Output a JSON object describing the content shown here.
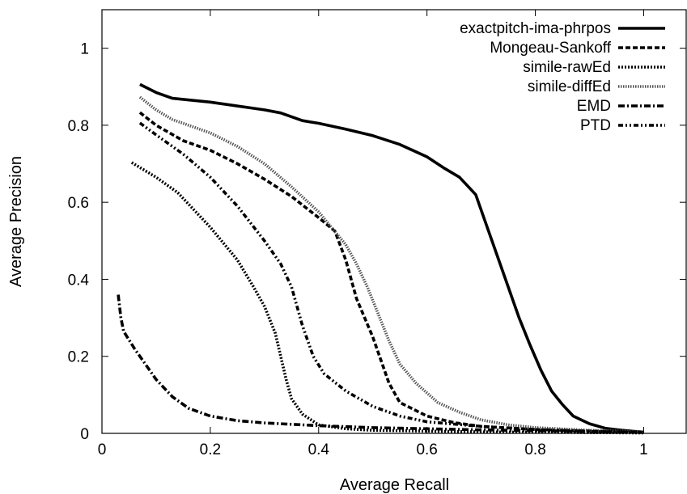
{
  "chart_data": {
    "type": "line",
    "xlabel": "Average Recall",
    "ylabel": "Average Precision",
    "xlim": [
      0,
      1.08
    ],
    "ylim": [
      0,
      1.1
    ],
    "xticks": [
      "0",
      "0.2",
      "0.4",
      "0.6",
      "0.8",
      "1"
    ],
    "yticks": [
      "0",
      "0.2",
      "0.4",
      "0.6",
      "0.8",
      "1"
    ],
    "grid": false,
    "legend_position": "top-right",
    "series": [
      {
        "name": "exactpitch-ima-phrpos",
        "style": "solid-thick",
        "x": [
          0.07,
          0.1,
          0.13,
          0.2,
          0.3,
          0.33,
          0.37,
          0.4,
          0.45,
          0.5,
          0.55,
          0.6,
          0.63,
          0.66,
          0.69,
          0.71,
          0.73,
          0.75,
          0.77,
          0.79,
          0.81,
          0.83,
          0.85,
          0.87,
          0.9,
          0.93,
          0.96,
          1.0
        ],
        "y": [
          0.906,
          0.885,
          0.87,
          0.86,
          0.84,
          0.832,
          0.812,
          0.805,
          0.79,
          0.773,
          0.75,
          0.718,
          0.69,
          0.665,
          0.62,
          0.54,
          0.46,
          0.38,
          0.3,
          0.23,
          0.165,
          0.11,
          0.075,
          0.045,
          0.025,
          0.013,
          0.008,
          0.003
        ]
      },
      {
        "name": "Mongeau-Sankoff",
        "style": "dashed-thick",
        "x": [
          0.07,
          0.1,
          0.15,
          0.2,
          0.25,
          0.3,
          0.35,
          0.4,
          0.43,
          0.45,
          0.47,
          0.5,
          0.53,
          0.55,
          0.6,
          0.65,
          0.7,
          0.8,
          0.9,
          1.0
        ],
        "y": [
          0.833,
          0.8,
          0.76,
          0.735,
          0.7,
          0.66,
          0.615,
          0.56,
          0.525,
          0.45,
          0.35,
          0.25,
          0.13,
          0.08,
          0.045,
          0.028,
          0.018,
          0.01,
          0.006,
          0.003
        ]
      },
      {
        "name": "simile-rawEd",
        "style": "dotted-thick",
        "x": [
          0.055,
          0.1,
          0.14,
          0.2,
          0.25,
          0.28,
          0.3,
          0.32,
          0.33,
          0.34,
          0.35,
          0.37,
          0.4,
          0.45,
          0.5,
          0.6,
          0.7,
          0.8,
          0.9,
          1.0
        ],
        "y": [
          0.703,
          0.665,
          0.625,
          0.535,
          0.45,
          0.38,
          0.33,
          0.26,
          0.2,
          0.14,
          0.09,
          0.05,
          0.022,
          0.012,
          0.008,
          0.006,
          0.004,
          0.003,
          0.002,
          0.001
        ]
      },
      {
        "name": "simile-diffEd",
        "style": "dotted-light",
        "x": [
          0.07,
          0.1,
          0.13,
          0.2,
          0.25,
          0.3,
          0.35,
          0.4,
          0.45,
          0.47,
          0.49,
          0.51,
          0.53,
          0.55,
          0.58,
          0.62,
          0.66,
          0.7,
          0.75,
          0.8,
          0.9,
          1.0
        ],
        "y": [
          0.873,
          0.84,
          0.815,
          0.78,
          0.745,
          0.7,
          0.64,
          0.575,
          0.49,
          0.44,
          0.38,
          0.31,
          0.24,
          0.18,
          0.13,
          0.08,
          0.055,
          0.035,
          0.022,
          0.015,
          0.008,
          0.004
        ]
      },
      {
        "name": "EMD",
        "style": "dash-dot",
        "x": [
          0.03,
          0.035,
          0.04,
          0.06,
          0.08,
          0.1,
          0.13,
          0.16,
          0.2,
          0.25,
          0.3,
          0.4,
          0.5,
          0.6,
          0.7,
          0.8,
          0.9,
          1.0
        ],
        "y": [
          0.36,
          0.3,
          0.265,
          0.22,
          0.18,
          0.14,
          0.095,
          0.065,
          0.045,
          0.033,
          0.027,
          0.02,
          0.015,
          0.012,
          0.009,
          0.007,
          0.005,
          0.003
        ]
      },
      {
        "name": "PTD",
        "style": "dash-dot-dot",
        "x": [
          0.07,
          0.1,
          0.15,
          0.2,
          0.25,
          0.3,
          0.33,
          0.35,
          0.37,
          0.39,
          0.41,
          0.45,
          0.5,
          0.55,
          0.6,
          0.7,
          0.8,
          0.9,
          1.0
        ],
        "y": [
          0.806,
          0.775,
          0.725,
          0.665,
          0.59,
          0.5,
          0.44,
          0.38,
          0.28,
          0.2,
          0.155,
          0.11,
          0.07,
          0.045,
          0.03,
          0.018,
          0.01,
          0.005,
          0.002
        ]
      }
    ]
  }
}
